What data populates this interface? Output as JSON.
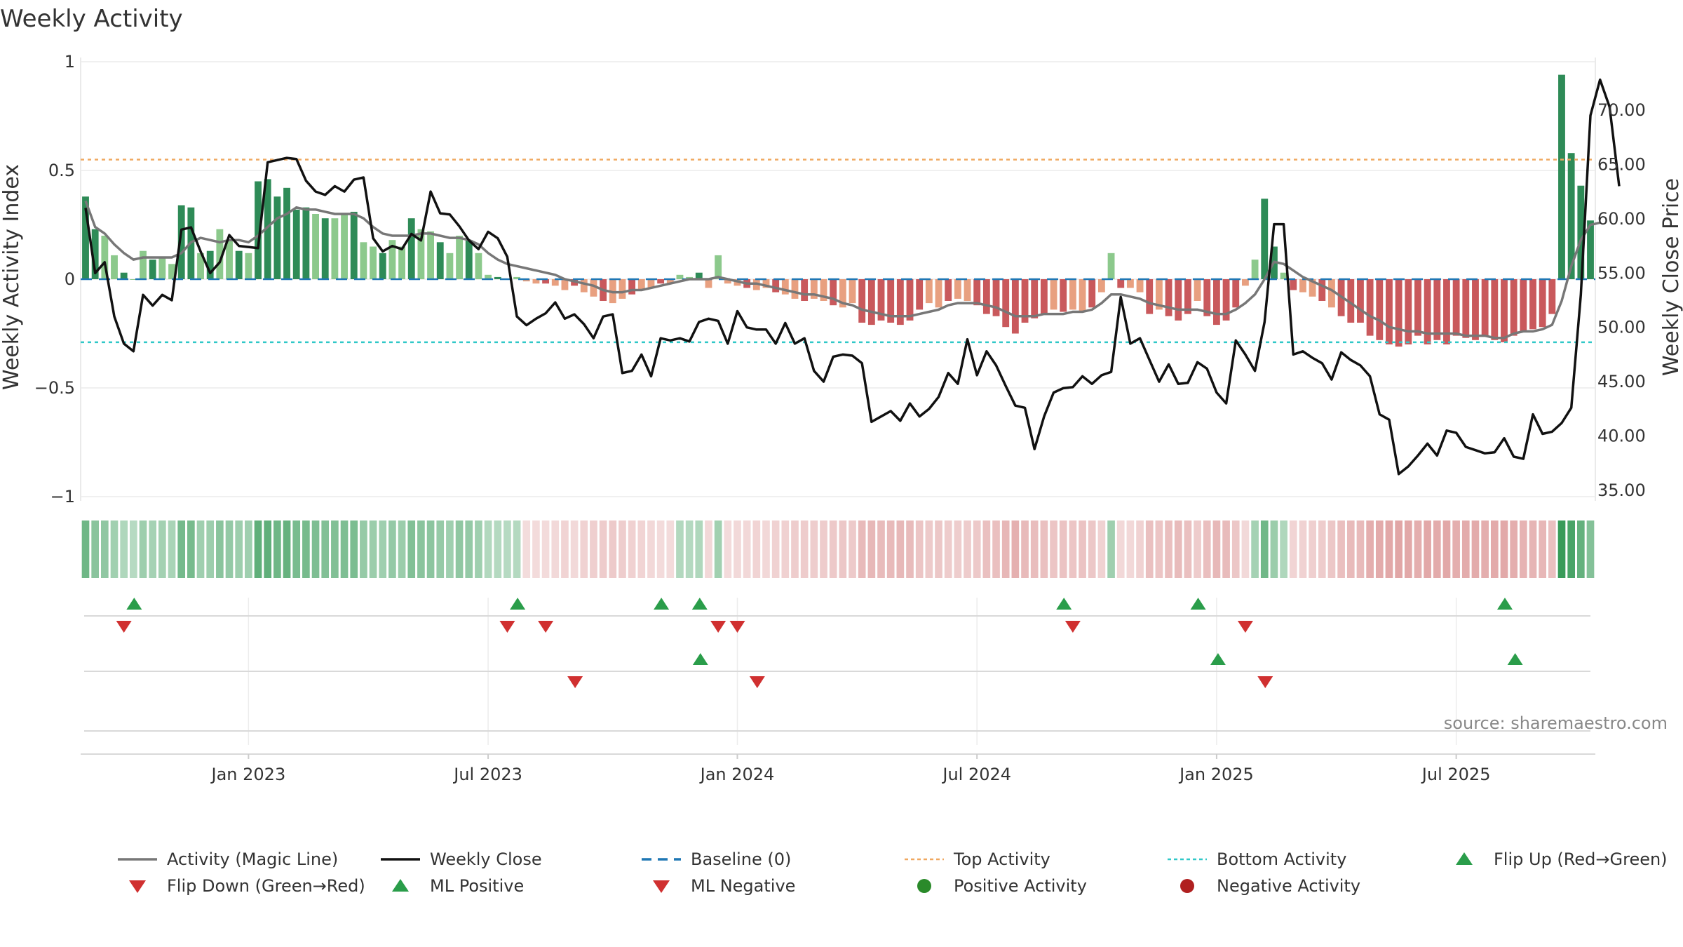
{
  "chart_data": {
    "type": "bar",
    "title": "Weekly Activity",
    "ylabel": "Weekly Activity Index",
    "y2label": "Weekly Close Price",
    "ylim": [
      -1,
      1
    ],
    "y2lim": [
      34,
      75
    ],
    "y_ticks": [
      "1",
      "0.5",
      "0",
      "−0.5",
      "−1"
    ],
    "y_tick_values": [
      1,
      0.5,
      0,
      -0.5,
      -1
    ],
    "y2_ticks": [
      "70.00",
      "65.00",
      "60.00",
      "55.00",
      "50.00",
      "45.00",
      "40.00",
      "35.00"
    ],
    "y2_tick_values": [
      70,
      65,
      60,
      55,
      50,
      45,
      40,
      35
    ],
    "x_ticks": [
      "Jan 2023",
      "Jul 2023",
      "Jan 2024",
      "Jul 2024",
      "Jan 2025",
      "Jul 2025"
    ],
    "x_tick_weeks": [
      17,
      42,
      68,
      93,
      118,
      143
    ],
    "top_activity": 0.55,
    "bottom_activity": -0.29,
    "source": "source: sharemaestro.com",
    "colors": {
      "pos_strong": "#2e8b57",
      "pos_weak": "#8cc98c",
      "neg_strong": "#c9595c",
      "neg_weak": "#e8a080",
      "magic_line": "#777777",
      "close_line": "#111111",
      "baseline": "#1f77b4",
      "top": "#f0a860",
      "bottom": "#30c8c8",
      "flip_up": "#2a9d4a",
      "flip_down": "#d03030"
    },
    "activity": [
      0.38,
      0.23,
      0.2,
      0.11,
      0.03,
      0.0,
      0.13,
      0.09,
      0.1,
      0.07,
      0.34,
      0.33,
      0.12,
      0.13,
      0.23,
      0.18,
      0.13,
      0.12,
      0.45,
      0.46,
      0.38,
      0.42,
      0.32,
      0.33,
      0.3,
      0.28,
      0.28,
      0.3,
      0.31,
      0.17,
      0.15,
      0.12,
      0.18,
      0.15,
      0.28,
      0.23,
      0.22,
      0.17,
      0.12,
      0.2,
      0.18,
      0.12,
      0.02,
      0.01,
      0.0,
      0.01,
      -0.01,
      -0.02,
      -0.02,
      -0.03,
      -0.05,
      -0.03,
      -0.06,
      -0.08,
      -0.1,
      -0.11,
      -0.09,
      -0.07,
      -0.05,
      -0.04,
      -0.02,
      -0.02,
      0.02,
      0.01,
      0.03,
      -0.04,
      0.11,
      -0.02,
      -0.03,
      -0.04,
      -0.05,
      -0.04,
      -0.06,
      -0.07,
      -0.09,
      -0.1,
      -0.09,
      -0.1,
      -0.12,
      -0.13,
      -0.11,
      -0.2,
      -0.21,
      -0.19,
      -0.2,
      -0.21,
      -0.19,
      -0.14,
      -0.11,
      -0.13,
      -0.1,
      -0.09,
      -0.1,
      -0.12,
      -0.16,
      -0.17,
      -0.22,
      -0.25,
      -0.2,
      -0.18,
      -0.16,
      -0.14,
      -0.15,
      -0.14,
      -0.15,
      -0.13,
      -0.06,
      0.12,
      -0.04,
      -0.04,
      -0.06,
      -0.16,
      -0.14,
      -0.17,
      -0.19,
      -0.16,
      -0.1,
      -0.17,
      -0.21,
      -0.19,
      -0.13,
      -0.03,
      0.09,
      0.37,
      0.15,
      0.03,
      -0.05,
      -0.06,
      -0.08,
      -0.1,
      -0.13,
      -0.17,
      -0.2,
      -0.2,
      -0.26,
      -0.28,
      -0.3,
      -0.31,
      -0.3,
      -0.26,
      -0.3,
      -0.28,
      -0.3,
      -0.26,
      -0.27,
      -0.28,
      -0.26,
      -0.28,
      -0.29,
      -0.26,
      -0.24,
      -0.23,
      -0.22,
      -0.16,
      0.94,
      0.58,
      0.43,
      0.27
    ],
    "magic_line": [
      0.36,
      0.24,
      0.21,
      0.16,
      0.12,
      0.09,
      0.1,
      0.1,
      0.1,
      0.1,
      0.12,
      0.17,
      0.19,
      0.18,
      0.17,
      0.18,
      0.18,
      0.17,
      0.2,
      0.24,
      0.28,
      0.3,
      0.33,
      0.32,
      0.32,
      0.31,
      0.3,
      0.3,
      0.3,
      0.28,
      0.24,
      0.21,
      0.2,
      0.2,
      0.2,
      0.21,
      0.21,
      0.2,
      0.19,
      0.19,
      0.18,
      0.16,
      0.12,
      0.09,
      0.07,
      0.06,
      0.05,
      0.04,
      0.03,
      0.02,
      0.0,
      -0.01,
      -0.02,
      -0.03,
      -0.05,
      -0.06,
      -0.06,
      -0.05,
      -0.05,
      -0.04,
      -0.03,
      -0.02,
      -0.01,
      0.0,
      0.0,
      0.0,
      0.01,
      0.0,
      -0.01,
      -0.02,
      -0.02,
      -0.03,
      -0.04,
      -0.05,
      -0.06,
      -0.07,
      -0.07,
      -0.08,
      -0.09,
      -0.11,
      -0.12,
      -0.14,
      -0.15,
      -0.16,
      -0.17,
      -0.17,
      -0.17,
      -0.16,
      -0.15,
      -0.14,
      -0.12,
      -0.11,
      -0.11,
      -0.11,
      -0.12,
      -0.13,
      -0.15,
      -0.17,
      -0.17,
      -0.17,
      -0.16,
      -0.16,
      -0.16,
      -0.15,
      -0.15,
      -0.14,
      -0.11,
      -0.07,
      -0.07,
      -0.08,
      -0.09,
      -0.11,
      -0.12,
      -0.13,
      -0.14,
      -0.14,
      -0.14,
      -0.15,
      -0.16,
      -0.16,
      -0.14,
      -0.11,
      -0.07,
      0.0,
      0.08,
      0.07,
      0.04,
      0.01,
      -0.01,
      -0.03,
      -0.05,
      -0.08,
      -0.11,
      -0.14,
      -0.17,
      -0.19,
      -0.22,
      -0.23,
      -0.24,
      -0.24,
      -0.25,
      -0.25,
      -0.25,
      -0.25,
      -0.26,
      -0.26,
      -0.26,
      -0.27,
      -0.27,
      -0.25,
      -0.24,
      -0.24,
      -0.23,
      -0.21,
      -0.1,
      0.06,
      0.18,
      0.25,
      0.26
    ],
    "close": [
      61,
      55,
      56,
      51,
      48.5,
      47.8,
      53,
      52,
      53,
      52.5,
      59,
      59.2,
      57,
      55,
      56,
      58.5,
      57.5,
      57.4,
      57.3,
      65.2,
      65.4,
      65.6,
      65.5,
      63.5,
      62.5,
      62.2,
      63,
      62.5,
      63.6,
      63.8,
      58.2,
      57,
      57.5,
      57.2,
      58.6,
      58,
      62.5,
      60.5,
      60.4,
      59.3,
      58,
      57.2,
      58.8,
      58.2,
      56.5,
      51,
      50.2,
      50.8,
      51.3,
      52.3,
      50.8,
      51.2,
      50.3,
      49,
      51,
      51.2,
      45.8,
      46,
      47.5,
      45.5,
      49,
      48.8,
      49,
      48.7,
      50.5,
      50.8,
      50.6,
      48.5,
      51.5,
      50,
      49.8,
      49.8,
      48.5,
      50.4,
      48.5,
      49,
      46,
      45,
      47.3,
      47.5,
      47.4,
      46.7,
      41.3,
      41.8,
      42.3,
      41.4,
      43,
      41.8,
      42.5,
      43.6,
      45.8,
      44.8,
      48.9,
      45.6,
      47.8,
      46.5,
      44.6,
      42.8,
      42.6,
      38.8,
      41.8,
      44,
      44.4,
      44.5,
      45.5,
      44.8,
      45.6,
      45.9,
      52.8,
      48.5,
      49,
      47,
      45,
      46.6,
      44.8,
      44.9,
      46.8,
      46.2,
      44,
      43,
      48.8,
      47.5,
      46,
      50.5,
      59.5,
      59.5,
      47.5,
      47.8,
      47.2,
      46.7,
      45.2,
      47.7,
      47,
      46.5,
      45.5,
      42,
      41.5,
      36.5,
      37.2,
      38.2,
      39.3,
      38.2,
      40.5,
      40.3,
      39,
      38.7,
      38.4,
      38.5,
      39.8,
      38.1,
      37.9,
      42,
      40.2,
      40.4,
      41.2,
      42.6,
      53,
      69.5,
      72.8,
      70.3,
      63
    ],
    "flip_up_row1": [
      5,
      45,
      60,
      64,
      102,
      116,
      148
    ],
    "flip_down_row1": [
      4,
      44,
      48,
      66,
      68,
      103,
      121
    ],
    "ml_pos_row2": [
      64,
      118,
      149
    ],
    "ml_neg_row2": [
      51,
      70,
      123
    ],
    "legend": [
      {
        "label": "Activity (Magic Line)",
        "kind": "line",
        "color": "#777777"
      },
      {
        "label": "Weekly Close",
        "kind": "line",
        "color": "#111111"
      },
      {
        "label": "Baseline (0)",
        "kind": "dash",
        "color": "#1f77b4"
      },
      {
        "label": "Top Activity",
        "kind": "dot",
        "color": "#f0a860"
      },
      {
        "label": "Bottom Activity",
        "kind": "dot",
        "color": "#30c8c8"
      },
      {
        "label": "Flip Up (Red→Green)",
        "kind": "tri-up",
        "color": "#2a9d4a"
      },
      {
        "label": "Flip Down (Green→Red)",
        "kind": "tri-down",
        "color": "#d03030"
      },
      {
        "label": "ML Positive",
        "kind": "tri-up",
        "color": "#2a9d4a"
      },
      {
        "label": "ML Negative",
        "kind": "tri-down",
        "color": "#d03030"
      },
      {
        "label": "Positive Activity",
        "kind": "circle",
        "color": "#2a8a2a"
      },
      {
        "label": "Negative Activity",
        "kind": "circle",
        "color": "#b02020"
      }
    ]
  }
}
